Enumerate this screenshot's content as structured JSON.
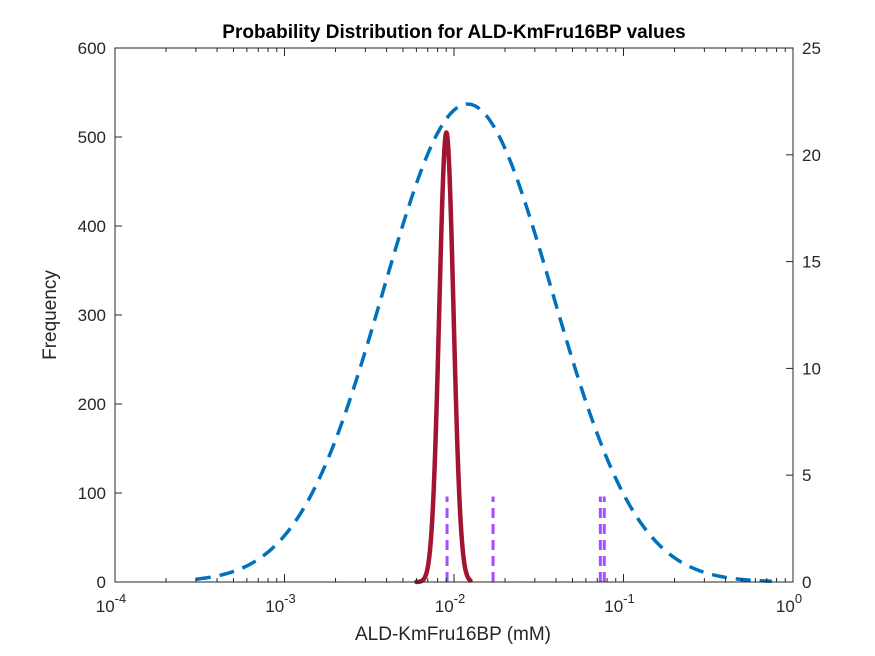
{
  "chart_data": {
    "type": "line",
    "title": "Probability Distribution for ALD-KmFru16BP values",
    "xlabel": "ALD-KmFru16BP (mM)",
    "ylabel": "Frequency",
    "xscale": "log",
    "xlim": [
      0.0001,
      1
    ],
    "ylim_left": [
      0,
      600
    ],
    "ylim_right": [
      0,
      25
    ],
    "x_tick_labels": [
      {
        "base": "10",
        "exp": "-4"
      },
      {
        "base": "10",
        "exp": "-3"
      },
      {
        "base": "10",
        "exp": "-2"
      },
      {
        "base": "10",
        "exp": "-1"
      },
      {
        "base": "10",
        "exp": "0"
      }
    ],
    "y_left_ticks": [
      "0",
      "100",
      "200",
      "300",
      "400",
      "500",
      "600"
    ],
    "y_right_ticks": [
      "0",
      "5",
      "10",
      "15",
      "20",
      "25"
    ],
    "grid": false,
    "colors": {
      "wide_distribution": "#0072BD",
      "narrow_distribution": "#A2142F",
      "measurements": "#A64DFF",
      "axes": "#262626"
    },
    "series": [
      {
        "style": "dashed",
        "axis": "left",
        "log10_center": -1.92,
        "log10_sd": 0.5,
        "peak": 537,
        "x_range": [
          0.0003,
          0.75
        ]
      },
      {
        "style": "solid",
        "axis": "left",
        "log10_center": -2.045,
        "log10_sd": 0.042,
        "peak": 505,
        "x_range": [
          0.006,
          0.0125
        ]
      }
    ],
    "measurements": {
      "style": "dashed-vertical",
      "axis": "right",
      "height": 4,
      "x": [
        0.0091,
        0.017,
        0.073,
        0.077
      ]
    }
  }
}
